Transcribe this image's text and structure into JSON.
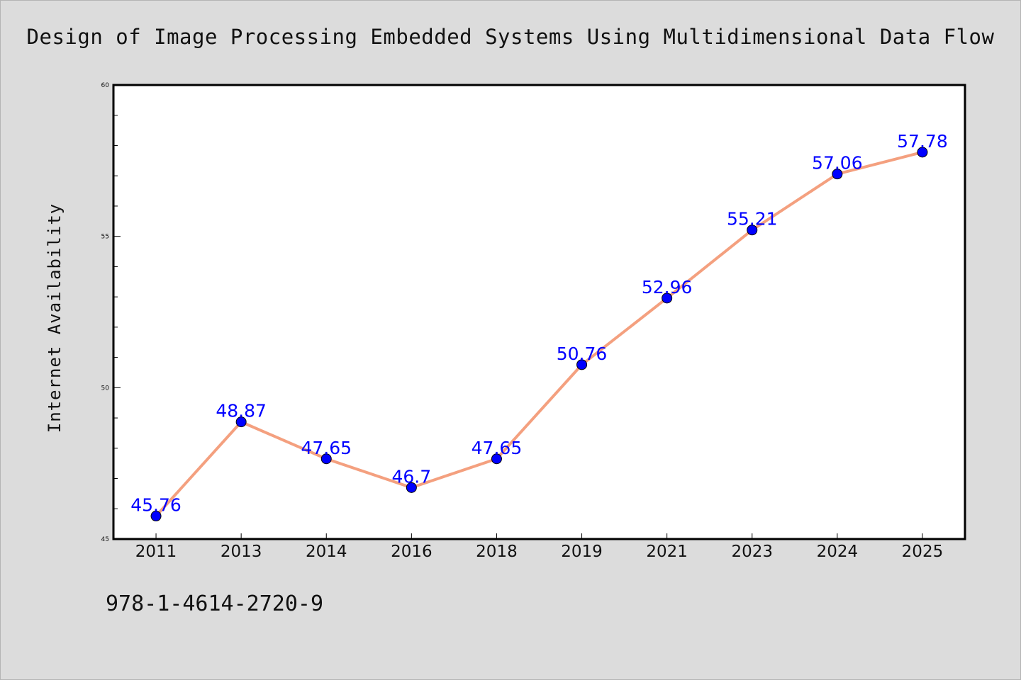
{
  "isbn": "978-1-4614-2720-9",
  "colors": {
    "background": "#dcdcdc",
    "line": "#f4a07f",
    "marker": "#0000ff",
    "data_label": "#0000ff"
  },
  "chart_data": {
    "type": "line",
    "title": "Design of Image Processing Embedded Systems Using Multidimensional Data Flow",
    "xlabel": "",
    "ylabel": "Internet Availability",
    "categories": [
      "2011",
      "2013",
      "2014",
      "2016",
      "2018",
      "2019",
      "2021",
      "2023",
      "2024",
      "2025"
    ],
    "series": [
      {
        "values": [
          45.76,
          48.87,
          47.65,
          46.7,
          47.65,
          50.76,
          52.96,
          55.21,
          57.06,
          57.78
        ]
      }
    ],
    "ylim": [
      45,
      60
    ],
    "yticks": [
      45,
      50,
      55,
      60
    ],
    "grid": false,
    "data_labels": [
      "45.76",
      "48.87",
      "47.65",
      "46.7",
      "47.65",
      "50.76",
      "52.96",
      "55.21",
      "57.06",
      "57.78"
    ]
  }
}
